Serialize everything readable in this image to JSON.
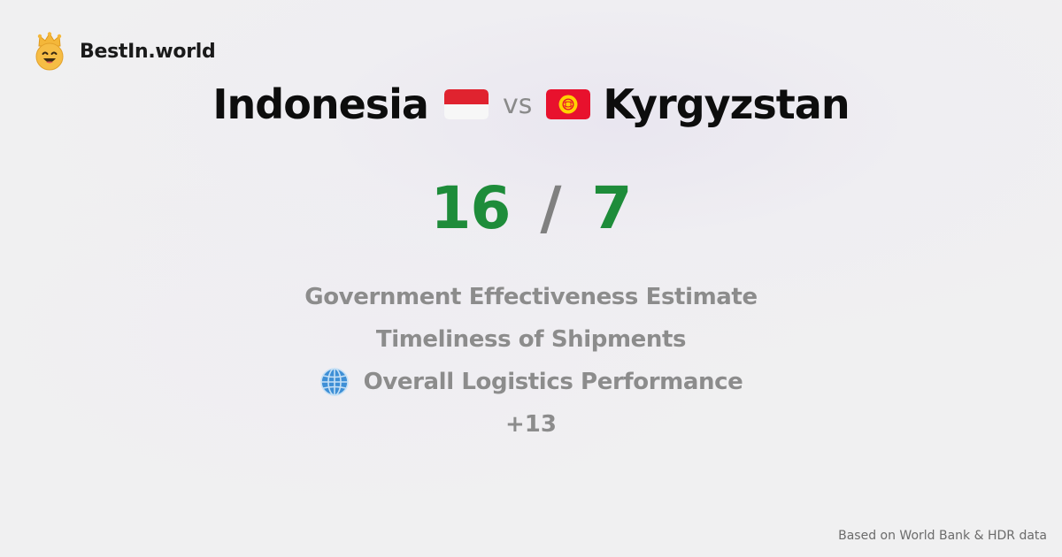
{
  "brand": {
    "name": "BestIn.world",
    "logo_icon": "crown-smiley-icon"
  },
  "comparison": {
    "country_a": {
      "name": "Indonesia",
      "flag_icon": "indonesia-flag-icon",
      "score": "16"
    },
    "vs_label": "vs",
    "country_b": {
      "name": "Kyrgyzstan",
      "flag_icon": "kyrgyzstan-flag-icon",
      "score": "7"
    },
    "separator": "/"
  },
  "metrics": [
    {
      "label": "Government Effectiveness Estimate"
    },
    {
      "label": "Timeliness of Shipments"
    },
    {
      "label": "Overall Logistics Performance",
      "icon": "globe-icon"
    }
  ],
  "more_label": "+13",
  "footer": {
    "source": "Based on World Bank & HDR data"
  },
  "colors": {
    "score_green": "#1e8c3a",
    "muted_text": "#8c8c8c",
    "background": "#f0f0f1"
  }
}
